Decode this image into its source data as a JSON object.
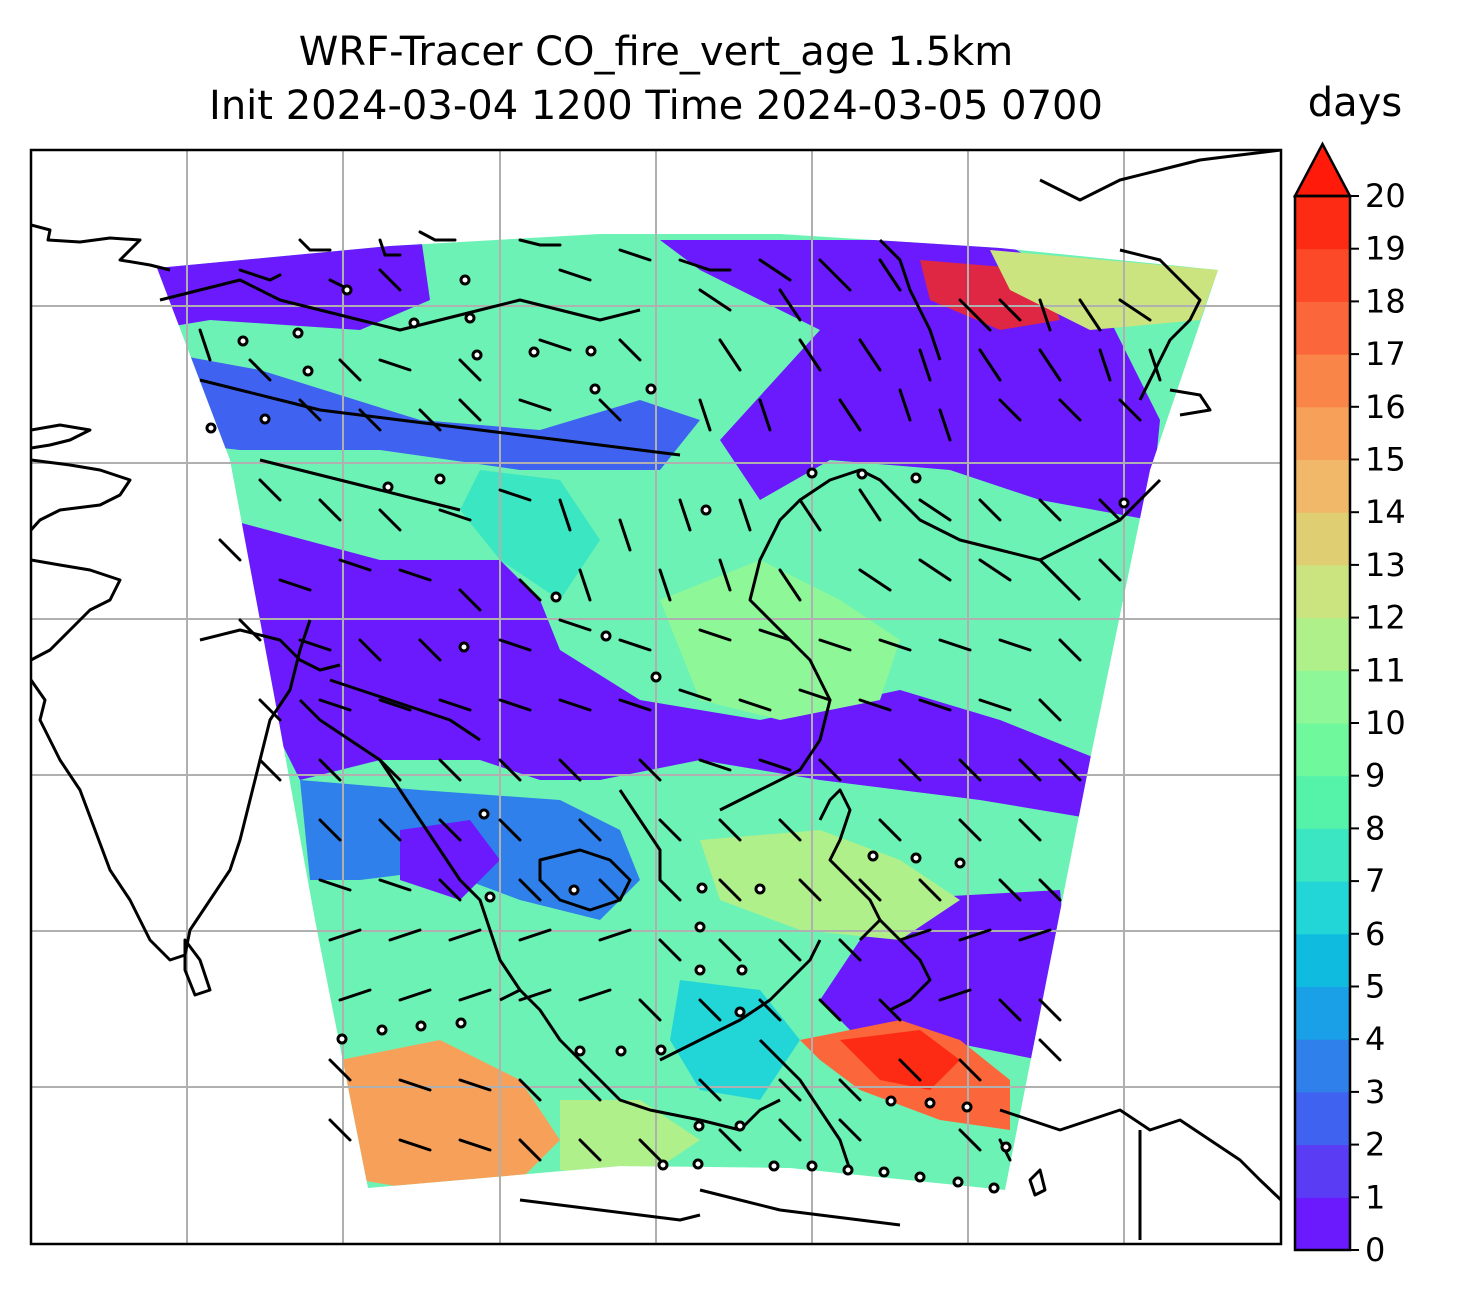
{
  "title": {
    "line1": "WRF-Tracer CO_fire_vert_age 1.5km",
    "line2": "Init 2024-03-04 1200 Time 2024-03-05 0700"
  },
  "colorbar": {
    "label": "days",
    "min": 0,
    "max": 20,
    "ticks": [
      "0",
      "1",
      "2",
      "3",
      "4",
      "5",
      "6",
      "7",
      "8",
      "9",
      "10",
      "11",
      "12",
      "13",
      "14",
      "15",
      "16",
      "17",
      "18",
      "19",
      "20"
    ],
    "extend": "max",
    "colors": [
      "#6a1afc",
      "#5b3cf5",
      "#3f62f0",
      "#2f80ea",
      "#1aa0e6",
      "#0fbce0",
      "#22d6d8",
      "#3be6c2",
      "#55f2aa",
      "#70f89c",
      "#8ef898",
      "#b0f08a",
      "#cce480",
      "#e0cf72",
      "#f0b868",
      "#f7a05a",
      "#fa8548",
      "#fb673a",
      "#fc4a28",
      "#fd2a14",
      "#ff1a0a"
    ]
  },
  "map": {
    "grid": true,
    "field": "CO_fire_vert_age",
    "units": "days"
  }
}
